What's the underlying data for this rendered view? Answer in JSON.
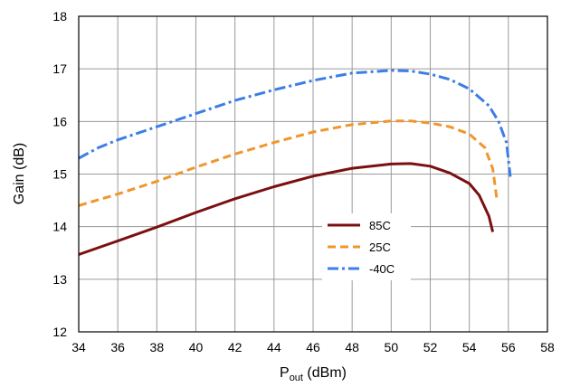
{
  "chart_data": {
    "type": "line",
    "xlabel": "P",
    "xlabel_sub": "out",
    "xlabel_unit": " (dBm)",
    "ylabel": "Gain (dB)",
    "xlim": [
      34,
      58
    ],
    "ylim": [
      12,
      18
    ],
    "x_ticks": [
      34,
      36,
      38,
      40,
      42,
      44,
      46,
      48,
      50,
      52,
      54,
      56,
      58
    ],
    "y_ticks": [
      12,
      13,
      14,
      15,
      16,
      17,
      18
    ],
    "grid": true,
    "legend_placement": "center-right",
    "series": [
      {
        "name": "85C",
        "color": "#7b1010",
        "dash": "solid",
        "points": [
          [
            34,
            13.47
          ],
          [
            36,
            13.73
          ],
          [
            38,
            13.99
          ],
          [
            40,
            14.27
          ],
          [
            42,
            14.53
          ],
          [
            44,
            14.76
          ],
          [
            46,
            14.96
          ],
          [
            48,
            15.11
          ],
          [
            50,
            15.19
          ],
          [
            51,
            15.2
          ],
          [
            52,
            15.15
          ],
          [
            53,
            15.02
          ],
          [
            54,
            14.82
          ],
          [
            54.5,
            14.6
          ],
          [
            55,
            14.2
          ],
          [
            55.2,
            13.9
          ]
        ]
      },
      {
        "name": "25C",
        "color": "#f0962a",
        "dash": "dashed",
        "points": [
          [
            34,
            14.4
          ],
          [
            36,
            14.62
          ],
          [
            38,
            14.86
          ],
          [
            40,
            15.13
          ],
          [
            42,
            15.38
          ],
          [
            44,
            15.6
          ],
          [
            46,
            15.8
          ],
          [
            48,
            15.94
          ],
          [
            50,
            16.01
          ],
          [
            51,
            16.01
          ],
          [
            52,
            15.97
          ],
          [
            53,
            15.9
          ],
          [
            54,
            15.76
          ],
          [
            54.8,
            15.5
          ],
          [
            55.2,
            15.1
          ],
          [
            55.4,
            14.55
          ]
        ]
      },
      {
        "name": "-40C",
        "color": "#3b7ee8",
        "dash": "dashdot",
        "points": [
          [
            34,
            15.3
          ],
          [
            35,
            15.5
          ],
          [
            36,
            15.65
          ],
          [
            38,
            15.9
          ],
          [
            40,
            16.15
          ],
          [
            42,
            16.4
          ],
          [
            44,
            16.6
          ],
          [
            46,
            16.78
          ],
          [
            48,
            16.92
          ],
          [
            50,
            16.97
          ],
          [
            51,
            16.96
          ],
          [
            52,
            16.9
          ],
          [
            53,
            16.8
          ],
          [
            54,
            16.62
          ],
          [
            55,
            16.3
          ],
          [
            55.5,
            16.0
          ],
          [
            55.9,
            15.6
          ],
          [
            56.1,
            14.95
          ]
        ]
      }
    ]
  }
}
